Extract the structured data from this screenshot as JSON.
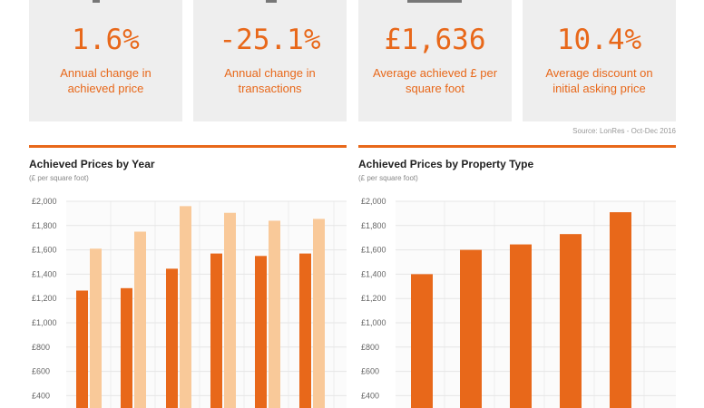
{
  "colors": {
    "accent": "#e8681a",
    "light": "#f9c999",
    "card_bg": "#eeeeee",
    "grid": "#e6e6e6"
  },
  "stats": [
    {
      "value": "1.6%",
      "label": "Annual change in achieved price"
    },
    {
      "value": "-25.1%",
      "label": "Annual change in transactions"
    },
    {
      "value": "£1,636",
      "label": "Average achieved £ per square foot"
    },
    {
      "value": "10.4%",
      "label": "Average discount on initial asking price"
    }
  ],
  "source": "Source: LonRes - Oct-Dec 2016",
  "chart_data": [
    {
      "type": "bar",
      "title": "Achieved Prices by Year",
      "subtitle": "(£ per square foot)",
      "ylim": [
        400,
        2000
      ],
      "yticks": [
        "£2,000",
        "£1,800",
        "£1,600",
        "£1,400",
        "£1,200",
        "£1,000",
        "£800",
        "£600",
        "£400"
      ],
      "grid": true,
      "series": [
        {
          "color": "#e8681a",
          "values": [
            1265,
            1285,
            1445,
            1570,
            1550,
            1570
          ]
        },
        {
          "color": "#f9c999",
          "values": [
            1610,
            1750,
            1960,
            1905,
            1840,
            1855
          ]
        }
      ]
    },
    {
      "type": "bar",
      "title": "Achieved Prices by Property Type",
      "subtitle": "(£ per square foot)",
      "ylim": [
        400,
        2000
      ],
      "yticks": [
        "£2,000",
        "£1,800",
        "£1,600",
        "£1,400",
        "£1,200",
        "£1,000",
        "£800",
        "£600",
        "£400"
      ],
      "grid": true,
      "series": [
        {
          "color": "#e8681a",
          "values": [
            1400,
            1600,
            1645,
            1730,
            1910
          ]
        }
      ]
    }
  ]
}
